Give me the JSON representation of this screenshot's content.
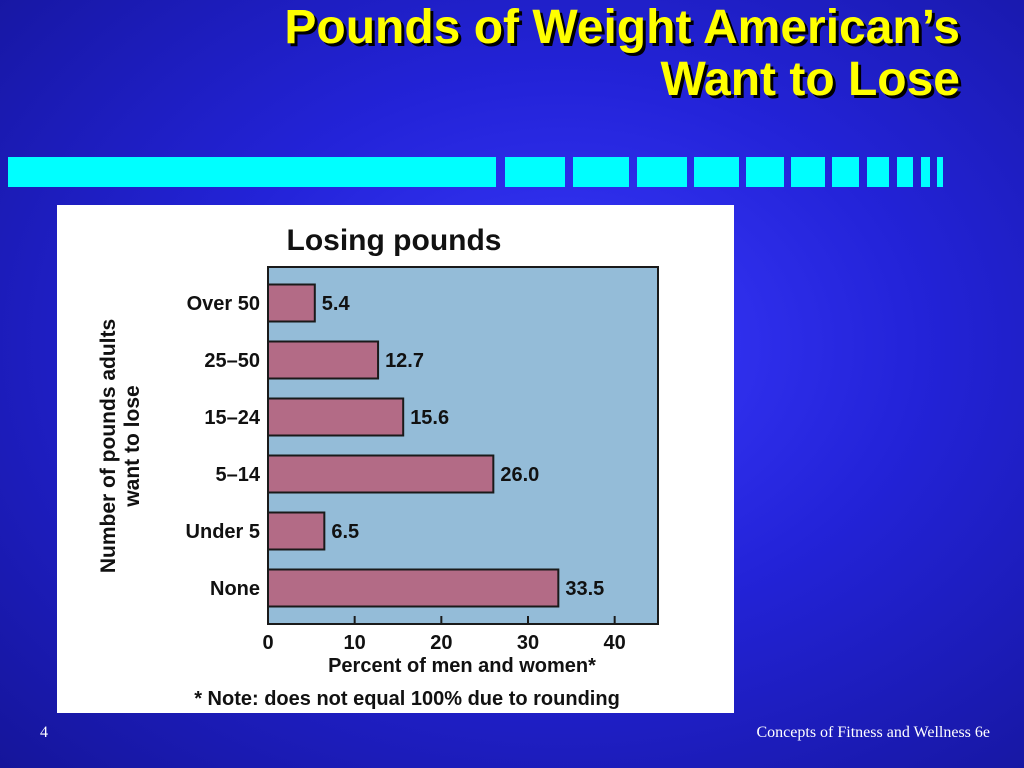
{
  "slide": {
    "title_line1": "Pounds of Weight American’s",
    "title_line2": "Want to Lose",
    "page_number": "4",
    "footer_text": "Concepts of Fitness and Wellness 6e",
    "colors": {
      "background": "#2323d8",
      "title": "#ffff00",
      "accent_bar": "#00ffff"
    }
  },
  "chart_data": {
    "type": "bar",
    "orientation": "horizontal",
    "title": "Losing pounds",
    "xlabel": "Percent of men and women*",
    "ylabel": "Number of pounds adults want to lose",
    "ylabel_lines": [
      "Number of pounds adults",
      "want to lose"
    ],
    "note": "* Note: does not equal 100% due to rounding",
    "categories": [
      "Over 50",
      "25–50",
      "15–24",
      "5–14",
      "Under 5",
      "None"
    ],
    "values": [
      5.4,
      12.7,
      15.6,
      26.0,
      6.5,
      33.5
    ],
    "value_labels": [
      "5.4",
      "12.7",
      "15.6",
      "26.0",
      "6.5",
      "33.5"
    ],
    "xlim": [
      0,
      45
    ],
    "xticks": [
      0,
      10,
      20,
      30,
      40
    ],
    "grid": false,
    "colors": {
      "plot_background": "#94bcd8",
      "bar_fill": "#b36b86",
      "bar_stroke": "#1a1a1a"
    }
  }
}
